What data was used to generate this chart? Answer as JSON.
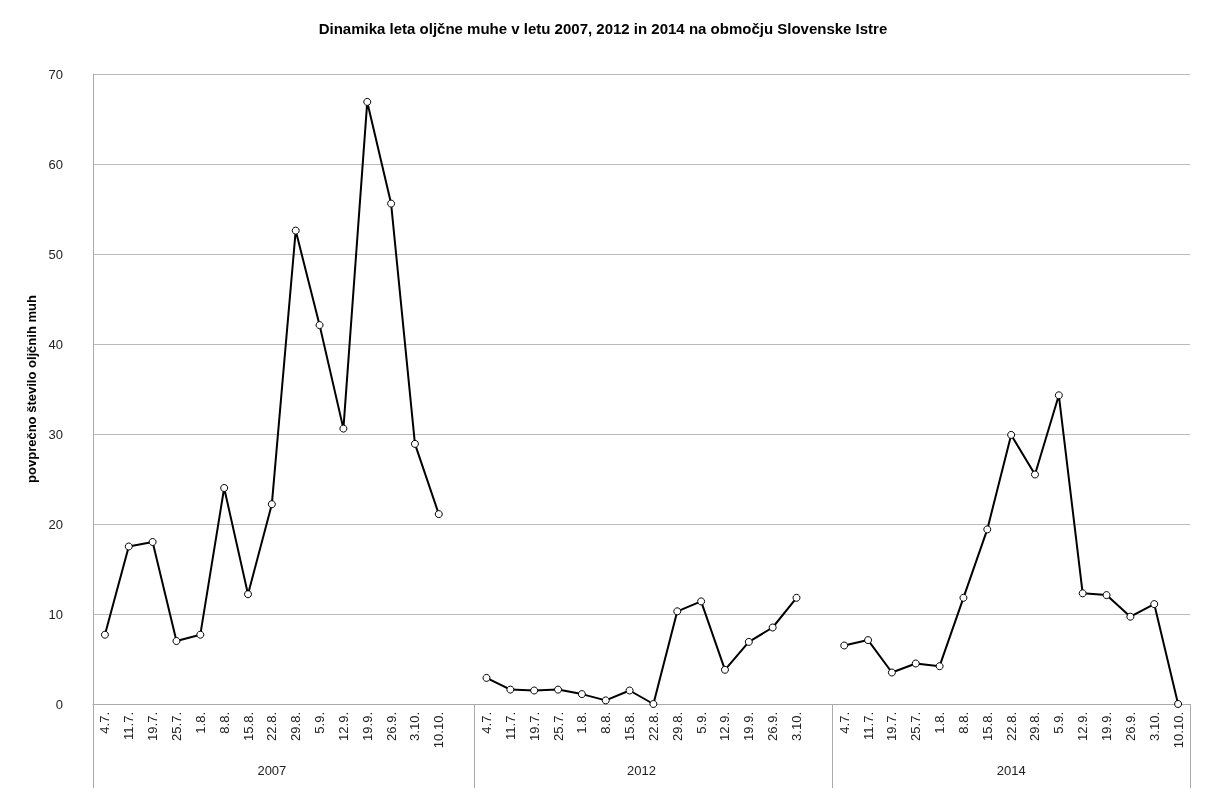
{
  "chart_data": {
    "type": "line",
    "title": "Dinamika leta oljčne muhe v letu 2007, 2012 in 2014 na območju Slovenske Istre",
    "ylabel": "povprečno število oljčnih muh",
    "categories": [
      "4.7.",
      "11.7.",
      "19.7.",
      "25.7.",
      "1.8.",
      "8.8.",
      "15.8.",
      "22.8.",
      "29.8.",
      "5.9.",
      "12.9.",
      "19.9.",
      "26.9.",
      "3.10.",
      "10.10.",
      null,
      "4.7.",
      "11.7.",
      "19.7.",
      "25.7.",
      "1.8.",
      "8.8.",
      "15.8.",
      "22.8.",
      "29.8.",
      "5.9.",
      "12.9.",
      "19.9.",
      "26.9.",
      "3.10.",
      null,
      "4.7.",
      "11.7.",
      "19.7.",
      "25.7.",
      "1.8.",
      "8.8.",
      "15.8.",
      "22.8.",
      "29.8.",
      "5.9.",
      "12.9.",
      "19.9.",
      "26.9.",
      "3.10.",
      "10.10."
    ],
    "series": [
      {
        "color": "#000000",
        "values": [
          7.7,
          17.5,
          18,
          7,
          7.7,
          24,
          12.2,
          22.2,
          52.6,
          42.1,
          30.6,
          66.9,
          55.6,
          28.9,
          21.1,
          null,
          2.9,
          1.6,
          1.5,
          1.6,
          1.1,
          0.4,
          1.5,
          0,
          10.3,
          11.4,
          3.8,
          6.9,
          8.5,
          11.8,
          null,
          6.5,
          7.1,
          3.5,
          4.5,
          4.2,
          11.8,
          19.4,
          29.9,
          25.5,
          34.3,
          12.3,
          12.1,
          9.7,
          11.1,
          0
        ]
      }
    ],
    "annotations": [
      "2007",
      "2012",
      "2014"
    ],
    "ylim": [
      0,
      70
    ],
    "yticks": [
      0,
      10,
      20,
      30,
      40,
      50,
      60,
      70
    ],
    "grid": "y",
    "marker": "circle",
    "line_style": "solid"
  }
}
